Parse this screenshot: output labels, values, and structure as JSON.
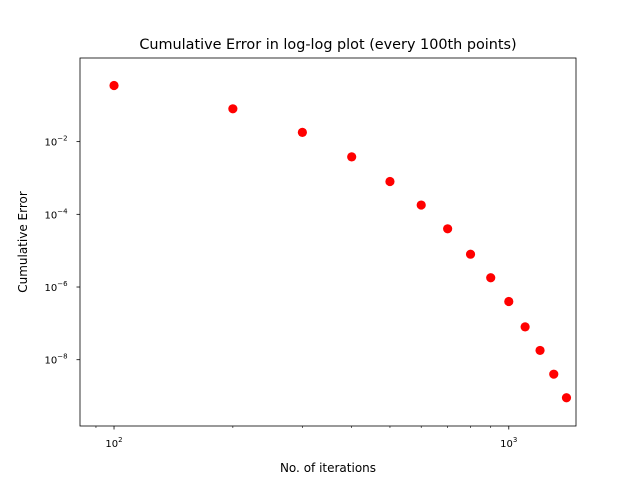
{
  "chart_data": {
    "type": "scatter",
    "title": "Cumulative Error in log-log plot (every 100th points)",
    "xlabel": "No. of iterations",
    "ylabel": "Cumulative Error",
    "xscale": "log",
    "yscale": "log",
    "xlim": [
      82,
      1480
    ],
    "ylim": [
      1.5e-10,
      2.0
    ],
    "grid": false,
    "marker_color": "#ff0000",
    "x_ticks": [
      {
        "value": 100,
        "base": "10",
        "exp": "2"
      },
      {
        "value": 1000,
        "base": "10",
        "exp": "3"
      }
    ],
    "y_ticks": [
      {
        "value": 0.01,
        "base": "10",
        "exp": "−2"
      },
      {
        "value": 0.0001,
        "base": "10",
        "exp": "−4"
      },
      {
        "value": 1e-06,
        "base": "10",
        "exp": "−6"
      },
      {
        "value": 1e-08,
        "base": "10",
        "exp": "−8"
      }
    ],
    "series": [
      {
        "x": [
          100,
          200,
          300,
          400,
          500,
          600,
          700,
          800,
          900,
          1000,
          1100,
          1200,
          1300,
          1400
        ],
        "y": [
          0.35,
          0.08,
          0.018,
          0.0038,
          0.0008,
          0.00018,
          4e-05,
          8e-06,
          1.8e-06,
          4e-07,
          8e-08,
          1.8e-08,
          4e-09,
          9e-10
        ]
      }
    ]
  }
}
